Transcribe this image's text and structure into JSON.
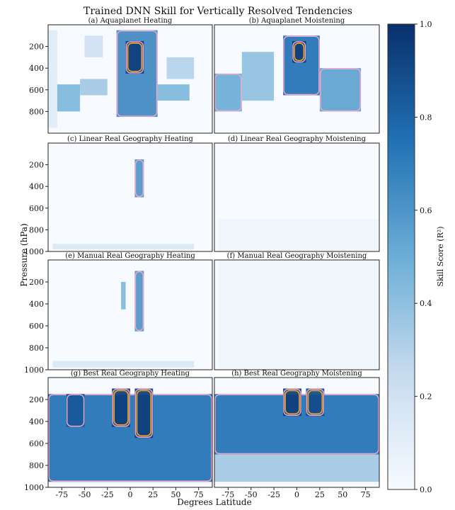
{
  "title": "Trained DNN Skill for Vertically Resolved Tendencies",
  "ylabel": "Pressure (hPa)",
  "xlabel": "Degrees Latitude",
  "colorbar": {
    "label": "Skill Score (R²)",
    "ticks": [
      "0.0",
      "0.2",
      "0.4",
      "0.6",
      "0.8",
      "1.0"
    ],
    "colormap": "Blues",
    "color_low": "#f7fbff",
    "color_high": "#08306b"
  },
  "contour_colors": {
    "pink": "#f4a6c9",
    "orange": "#f5a623"
  },
  "chart_data": [
    {
      "type": "heatmap",
      "panel": "a",
      "title": "(a) Aquaplanet Heating",
      "x": "latitude",
      "y": "pressure",
      "ylim": [
        1000,
        0
      ],
      "yticks": [
        "200",
        "400",
        "600",
        "800"
      ],
      "regions": [
        {
          "lat": [
            -90,
            -80
          ],
          "p": [
            50,
            950
          ],
          "r2": 0.12
        },
        {
          "lat": [
            -80,
            -55
          ],
          "p": [
            550,
            800
          ],
          "r2": 0.45
        },
        {
          "lat": [
            -55,
            -25
          ],
          "p": [
            500,
            650
          ],
          "r2": 0.35
        },
        {
          "lat": [
            -50,
            -30
          ],
          "p": [
            100,
            300
          ],
          "r2": 0.2
        },
        {
          "lat": [
            -15,
            30
          ],
          "p": [
            50,
            850
          ],
          "r2": 0.65
        },
        {
          "lat": [
            -5,
            15
          ],
          "p": [
            150,
            450
          ],
          "r2": 0.95
        },
        {
          "lat": [
            30,
            65
          ],
          "p": [
            550,
            700
          ],
          "r2": 0.45
        },
        {
          "lat": [
            40,
            70
          ],
          "p": [
            300,
            500
          ],
          "r2": 0.3
        }
      ]
    },
    {
      "type": "heatmap",
      "panel": "b",
      "title": "(b) Aquaplanet Moistening",
      "x": "latitude",
      "y": "pressure",
      "ylim": [
        1000,
        0
      ],
      "yticks": [],
      "regions": [
        {
          "lat": [
            -90,
            -60
          ],
          "p": [
            450,
            800
          ],
          "r2": 0.5
        },
        {
          "lat": [
            -60,
            -25
          ],
          "p": [
            250,
            700
          ],
          "r2": 0.4
        },
        {
          "lat": [
            -15,
            25
          ],
          "p": [
            100,
            650
          ],
          "r2": 0.75
        },
        {
          "lat": [
            -5,
            10
          ],
          "p": [
            150,
            350
          ],
          "r2": 0.95
        },
        {
          "lat": [
            25,
            70
          ],
          "p": [
            400,
            800
          ],
          "r2": 0.55
        }
      ]
    },
    {
      "type": "heatmap",
      "panel": "c",
      "title": "(c) Linear Real Geography Heating",
      "x": "latitude",
      "y": "pressure",
      "ylim": [
        1000,
        0
      ],
      "yticks": [
        "200",
        "400",
        "600",
        "800",
        "1000"
      ],
      "regions": [
        {
          "lat": [
            5,
            15
          ],
          "p": [
            150,
            500
          ],
          "r2": 0.6
        },
        {
          "lat": [
            -85,
            70
          ],
          "p": [
            930,
            980
          ],
          "r2": 0.15
        }
      ]
    },
    {
      "type": "heatmap",
      "panel": "d",
      "title": "(d) Linear Real Geography Moistening",
      "x": "latitude",
      "y": "pressure",
      "ylim": [
        1000,
        0
      ],
      "yticks": [],
      "regions": [
        {
          "lat": [
            -85,
            90
          ],
          "p": [
            700,
            1000
          ],
          "r2": 0.04
        }
      ]
    },
    {
      "type": "heatmap",
      "panel": "e",
      "title": "(e) Manual Real Geography Heating",
      "x": "latitude",
      "y": "pressure",
      "ylim": [
        1000,
        0
      ],
      "yticks": [
        "200",
        "400",
        "600",
        "800",
        "1000"
      ],
      "regions": [
        {
          "lat": [
            -10,
            -5
          ],
          "p": [
            200,
            450
          ],
          "r2": 0.45
        },
        {
          "lat": [
            5,
            15
          ],
          "p": [
            100,
            650
          ],
          "r2": 0.6
        },
        {
          "lat": [
            -85,
            70
          ],
          "p": [
            920,
            980
          ],
          "r2": 0.15
        }
      ]
    },
    {
      "type": "heatmap",
      "panel": "f",
      "title": "(f) Manual Real Geography Moistening",
      "x": "latitude",
      "y": "pressure",
      "ylim": [
        1000,
        0
      ],
      "yticks": [],
      "regions": [
        {
          "lat": [
            -85,
            90
          ],
          "p": [
            0,
            1000
          ],
          "r2": 0.04
        }
      ]
    },
    {
      "type": "heatmap",
      "panel": "g",
      "title": "(g) Best Real Geography Heating",
      "x": "latitude",
      "y": "pressure",
      "ylim": [
        1000,
        0
      ],
      "yticks": [
        "200",
        "400",
        "600",
        "800",
        "1000"
      ],
      "xticks": [
        "-75",
        "-50",
        "-25",
        "0",
        "25",
        "50",
        "75"
      ],
      "regions": [
        {
          "lat": [
            -90,
            90
          ],
          "p": [
            150,
            950
          ],
          "r2": 0.75
        },
        {
          "lat": [
            -20,
            0
          ],
          "p": [
            100,
            450
          ],
          "r2": 0.95
        },
        {
          "lat": [
            5,
            25
          ],
          "p": [
            100,
            550
          ],
          "r2": 0.95
        },
        {
          "lat": [
            -70,
            -50
          ],
          "p": [
            150,
            450
          ],
          "r2": 0.85
        }
      ]
    },
    {
      "type": "heatmap",
      "panel": "h",
      "title": "(h) Best Real Geography Moistening",
      "x": "latitude",
      "y": "pressure",
      "ylim": [
        1000,
        0
      ],
      "yticks": [],
      "xticks": [
        "-75",
        "-50",
        "-25",
        "0",
        "25",
        "50",
        "75"
      ],
      "regions": [
        {
          "lat": [
            -90,
            90
          ],
          "p": [
            150,
            700
          ],
          "r2": 0.75
        },
        {
          "lat": [
            -90,
            90
          ],
          "p": [
            700,
            950
          ],
          "r2": 0.35
        },
        {
          "lat": [
            -15,
            5
          ],
          "p": [
            100,
            350
          ],
          "r2": 0.95
        },
        {
          "lat": [
            10,
            30
          ],
          "p": [
            100,
            350
          ],
          "r2": 0.9
        }
      ]
    }
  ]
}
